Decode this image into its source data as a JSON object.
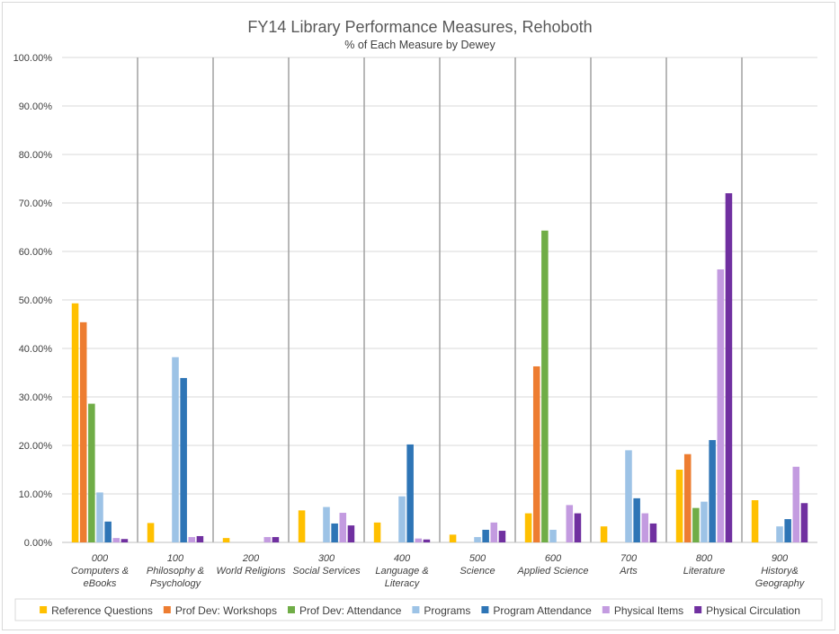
{
  "chart_data": {
    "type": "bar",
    "title": "FY14 Library Performance Measures, Rehoboth",
    "subtitle": "% of Each Measure by Dewey",
    "xlabel": "",
    "ylabel": "",
    "ylim": [
      0,
      100
    ],
    "ytick_labels": [
      "0.00%",
      "10.00%",
      "20.00%",
      "30.00%",
      "40.00%",
      "50.00%",
      "60.00%",
      "70.00%",
      "80.00%",
      "90.00%",
      "100.00%"
    ],
    "grid": true,
    "legend_position": "bottom",
    "categories": [
      [
        "000",
        "Computers &",
        "eBooks"
      ],
      [
        "100",
        "Philosophy &",
        "Psychology"
      ],
      [
        "200",
        "World Religions"
      ],
      [
        "300",
        "Social Services"
      ],
      [
        "400",
        "Language &",
        "Literacy"
      ],
      [
        "500",
        "Science"
      ],
      [
        "600",
        "Applied Science"
      ],
      [
        "700",
        "Arts"
      ],
      [
        "800",
        "Literature"
      ],
      [
        "900",
        "History&",
        "Geography"
      ]
    ],
    "series": [
      {
        "name": "Reference Questions",
        "color": "#FFC000",
        "values": [
          49.3,
          4.0,
          0.9,
          6.6,
          4.1,
          1.6,
          6.0,
          3.3,
          15.0,
          8.7
        ]
      },
      {
        "name": "Prof Dev: Workshops",
        "color": "#ED7D31",
        "values": [
          45.4,
          0,
          0,
          0,
          0,
          0,
          36.3,
          0,
          18.2,
          0
        ]
      },
      {
        "name": "Prof Dev: Attendance",
        "color": "#70AD47",
        "values": [
          28.6,
          0,
          0,
          0,
          0,
          0,
          64.3,
          0,
          7.1,
          0
        ]
      },
      {
        "name": "Programs",
        "color": "#9DC3E6",
        "values": [
          10.3,
          38.2,
          0,
          7.3,
          9.5,
          1.1,
          2.6,
          19.0,
          8.4,
          3.3
        ]
      },
      {
        "name": "Program Attendance",
        "color": "#2E75B6",
        "values": [
          4.3,
          33.9,
          0,
          3.9,
          20.2,
          2.6,
          0,
          9.1,
          21.1,
          4.8
        ]
      },
      {
        "name": "Physical Items",
        "color": "#C39BE0",
        "values": [
          0.9,
          1.1,
          1.1,
          6.1,
          0.8,
          4.1,
          7.7,
          6.0,
          56.3,
          15.6
        ]
      },
      {
        "name": "Physical Circulation",
        "color": "#7030A0",
        "values": [
          0.7,
          1.3,
          1.1,
          3.5,
          0.6,
          2.4,
          6.0,
          3.9,
          72.0,
          8.1
        ]
      }
    ]
  }
}
